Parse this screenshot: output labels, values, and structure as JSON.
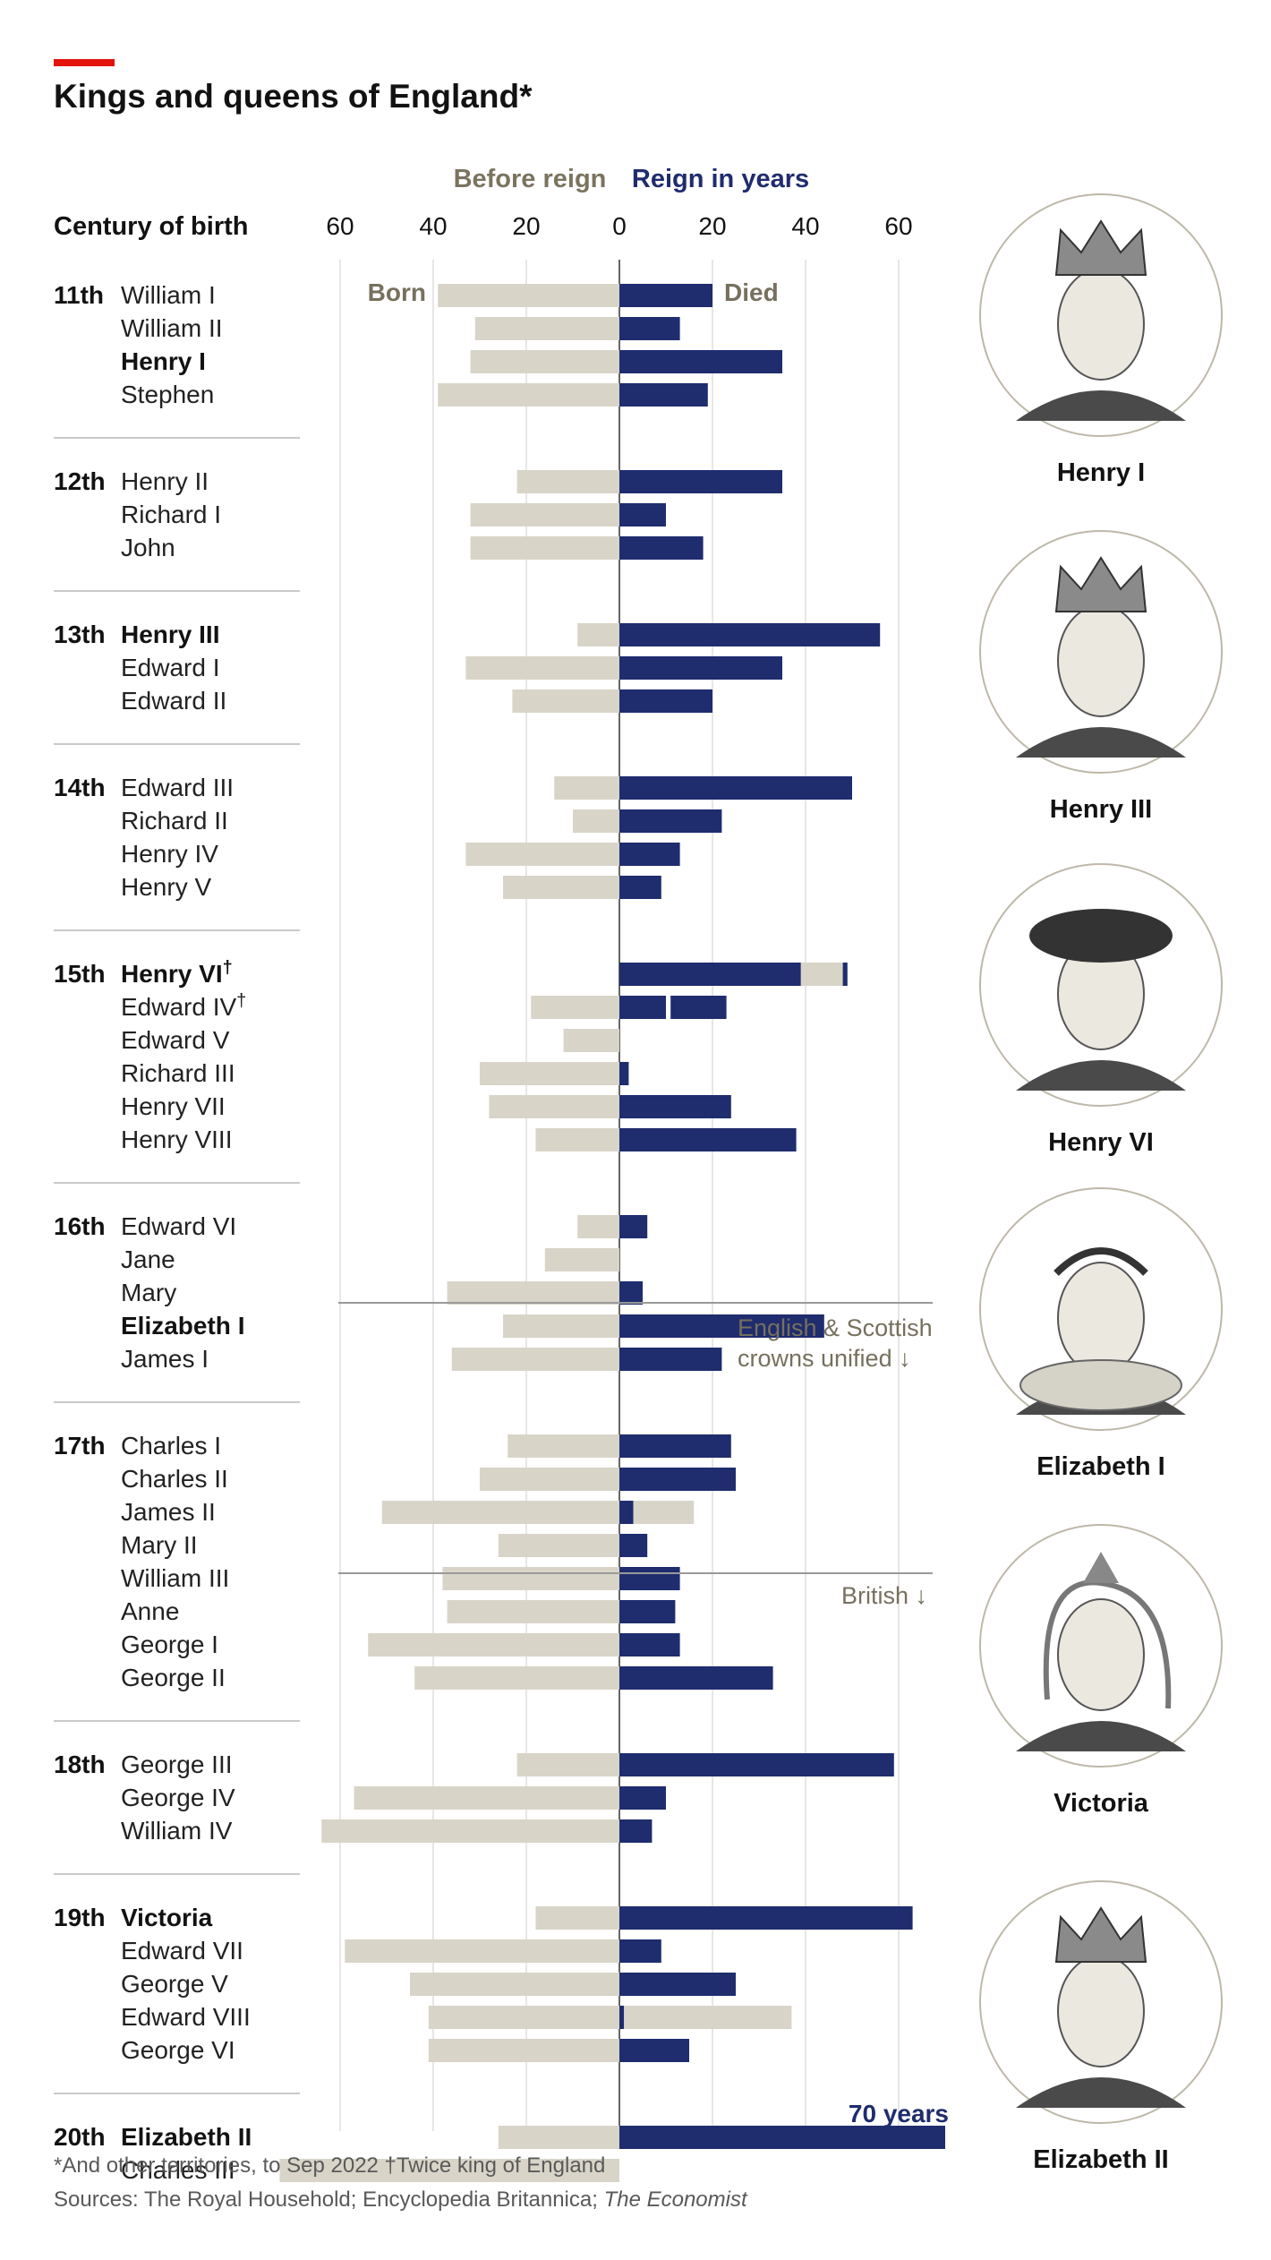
{
  "title": "Kings and queens of England*",
  "legend": {
    "before": "Before reign",
    "reign": "Reign in years"
  },
  "century_header": "Century of birth",
  "labels": {
    "born": "Born",
    "died": "Died",
    "seventy": "70 years"
  },
  "annotations": {
    "unified_line1": "English & Scottish",
    "unified_line2": "crowns unified ↓",
    "british": "British ↓"
  },
  "footnote": "*And other territories, to Sep 2022 †Twice king of England",
  "sources_prefix": "Sources: The Royal Household; Encyclopedia Britannica; ",
  "sources_italic": "The Economist",
  "colors": {
    "before": "#d8d5c8",
    "reign": "#1f2c6e",
    "brand": "#e3120b",
    "annotation": "#76705e",
    "axis": "#7a7a7a"
  },
  "portraits": [
    {
      "label": "Henry I",
      "icon": "crowned-king-portrait"
    },
    {
      "label": "Henry III",
      "icon": "crowned-king-portrait"
    },
    {
      "label": "Henry VI",
      "icon": "hatted-king-portrait"
    },
    {
      "label": "Elizabeth I",
      "icon": "ruffed-queen-portrait"
    },
    {
      "label": "Victoria",
      "icon": "veiled-queen-portrait"
    },
    {
      "label": "Elizabeth II",
      "icon": "crowned-queen-portrait"
    }
  ],
  "chart_data": {
    "type": "bar",
    "subtype": "diverging-horizontal",
    "axis_ticks": [
      "60",
      "40",
      "20",
      "0",
      "20",
      "40",
      "60"
    ],
    "xlim": [
      -72,
      72
    ],
    "series": [
      {
        "name": "Before reign",
        "direction": "left"
      },
      {
        "name": "Reign in years",
        "direction": "right"
      }
    ],
    "groups": [
      {
        "century": "11th",
        "monarchs": [
          {
            "name": "William I",
            "before": 39,
            "reign": 20
          },
          {
            "name": "William II",
            "before": 31,
            "reign": 13
          },
          {
            "name": "Henry I",
            "before": 32,
            "reign": 35,
            "bold": true
          },
          {
            "name": "Stephen",
            "before": 39,
            "reign": 19
          }
        ]
      },
      {
        "century": "12th",
        "monarchs": [
          {
            "name": "Henry II",
            "before": 22,
            "reign": 35
          },
          {
            "name": "Richard I",
            "before": 32,
            "reign": 10
          },
          {
            "name": "John",
            "before": 32,
            "reign": 18
          }
        ]
      },
      {
        "century": "13th",
        "monarchs": [
          {
            "name": "Henry III",
            "before": 9,
            "reign": 56,
            "bold": true
          },
          {
            "name": "Edward I",
            "before": 33,
            "reign": 35
          },
          {
            "name": "Edward II",
            "before": 23,
            "reign": 20
          }
        ]
      },
      {
        "century": "14th",
        "monarchs": [
          {
            "name": "Edward III",
            "before": 14,
            "reign": 50
          },
          {
            "name": "Richard II",
            "before": 10,
            "reign": 22
          },
          {
            "name": "Henry IV",
            "before": 33,
            "reign": 13
          },
          {
            "name": "Henry V",
            "before": 25,
            "reign": 9
          }
        ]
      },
      {
        "century": "15th",
        "monarchs": [
          {
            "name": "Henry VI",
            "before": 0,
            "reign": 39,
            "gap": 9,
            "reign2": 1,
            "bold": true,
            "dagger": true
          },
          {
            "name": "Edward IV",
            "before": 19,
            "reign": 10,
            "gap": 1,
            "reign2": 12,
            "dagger": true
          },
          {
            "name": "Edward V",
            "before": 12,
            "reign": 0
          },
          {
            "name": "Richard III",
            "before": 30,
            "reign": 2
          },
          {
            "name": "Henry VII",
            "before": 28,
            "reign": 24
          },
          {
            "name": "Henry VIII",
            "before": 18,
            "reign": 38
          }
        ]
      },
      {
        "century": "16th",
        "monarchs": [
          {
            "name": "Edward VI",
            "before": 9,
            "reign": 6
          },
          {
            "name": "Jane",
            "before": 16,
            "reign": 0
          },
          {
            "name": "Mary",
            "before": 37,
            "reign": 5
          },
          {
            "name": "Elizabeth I",
            "before": 25,
            "reign": 44,
            "bold": true
          },
          {
            "name": "James I",
            "before": 36,
            "reign": 22
          }
        ]
      },
      {
        "century": "17th",
        "monarchs": [
          {
            "name": "Charles I",
            "before": 24,
            "reign": 24
          },
          {
            "name": "Charles II",
            "before": 30,
            "reign": 25
          },
          {
            "name": "James II",
            "before": 51,
            "reign": 3,
            "after": 13
          },
          {
            "name": "Mary II",
            "before": 26,
            "reign": 6
          },
          {
            "name": "William III",
            "before": 38,
            "reign": 13
          },
          {
            "name": "Anne",
            "before": 37,
            "reign": 12
          },
          {
            "name": "George I",
            "before": 54,
            "reign": 13
          },
          {
            "name": "George II",
            "before": 44,
            "reign": 33
          }
        ]
      },
      {
        "century": "18th",
        "monarchs": [
          {
            "name": "George III",
            "before": 22,
            "reign": 59
          },
          {
            "name": "George IV",
            "before": 57,
            "reign": 10
          },
          {
            "name": "William IV",
            "before": 64,
            "reign": 7
          }
        ]
      },
      {
        "century": "19th",
        "monarchs": [
          {
            "name": "Victoria",
            "before": 18,
            "reign": 63,
            "bold": true
          },
          {
            "name": "Edward VII",
            "before": 59,
            "reign": 9
          },
          {
            "name": "George V",
            "before": 45,
            "reign": 25
          },
          {
            "name": "Edward VIII",
            "before": 41,
            "reign": 1,
            "after": 36
          },
          {
            "name": "George VI",
            "before": 41,
            "reign": 15
          }
        ]
      },
      {
        "century": "20th",
        "monarchs": [
          {
            "name": "Elizabeth II",
            "before": 26,
            "reign": 70,
            "bold": true
          },
          {
            "name": "Charles III",
            "before": 73,
            "reign": 0
          }
        ]
      }
    ]
  }
}
